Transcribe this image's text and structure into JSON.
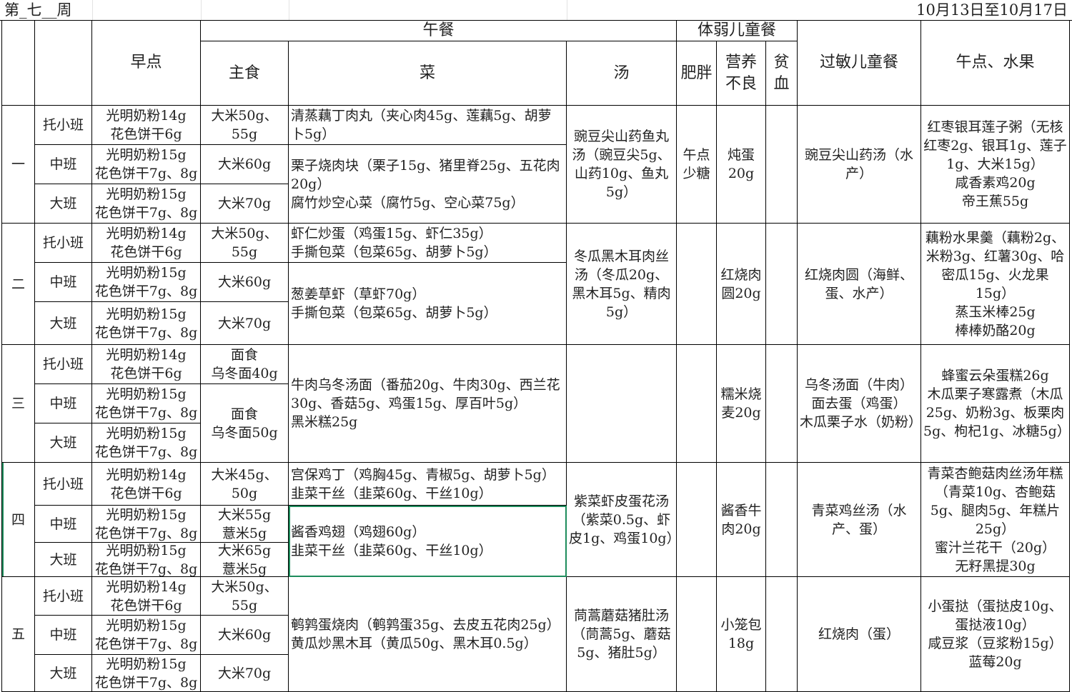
{
  "title": {
    "week": "第_七__周",
    "date_range": "10月13日至10月17日"
  },
  "header": {
    "breakfast": "早点",
    "lunch": "午餐",
    "staple": "主食",
    "dish": "菜",
    "soup": "汤",
    "weak": "体弱儿童餐",
    "obese": "肥胖",
    "malnutrition": "营养\n不良",
    "anemia": "贫\n血",
    "allergy": "过敏儿童餐",
    "snack": "午点、水果"
  },
  "classes": [
    "托小班",
    "中班",
    "大班"
  ],
  "days": [
    {
      "label": "一",
      "breakfast": [
        "光明奶粉14g\n花色饼干6g",
        "光明奶粉15g\n花色饼干7g、8g",
        "光明奶粉15g\n花色饼干7g、8g"
      ],
      "staple": [
        {
          "text": "大米50g、\n55g",
          "rows": 1
        },
        {
          "text": "大米60g",
          "rows": 1
        },
        {
          "text": "大米70g",
          "rows": 1
        }
      ],
      "dishes": [
        {
          "text": "清蒸藕丁肉丸（夹心肉45g、莲藕5g、胡萝卜5g）",
          "rows": 1
        },
        {
          "text": "栗子烧肉块（栗子15g、猪里脊25g、五花肉20g）\n腐竹炒空心菜（腐竹5g、空心菜75g）",
          "rows": 2
        }
      ],
      "soup": "豌豆尖山药鱼丸汤（豌豆尖5g、山药10g、鱼丸5g）",
      "obese": "午点\n少糖",
      "malnutrition": "炖蛋\n20g",
      "anemia": "",
      "allergy": "豌豆尖山药汤（水产）",
      "snack": "红枣银耳莲子粥（无核红枣2g、银耳1g、莲子1g、大米15g）\n咸香素鸡20g\n帝王蕉55g"
    },
    {
      "label": "二",
      "breakfast": [
        "光明奶粉14g\n花色饼干6g",
        "光明奶粉15g\n花色饼干7g、8g",
        "光明奶粉15g\n花色饼干7g、8g"
      ],
      "staple": [
        {
          "text": "大米50g、\n55g",
          "rows": 1
        },
        {
          "text": "大米60g",
          "rows": 1
        },
        {
          "text": "大米70g",
          "rows": 1
        }
      ],
      "dishes": [
        {
          "text": "虾仁炒蛋（鸡蛋15g、虾仁35g）\n手撕包菜（包菜65g、胡萝卜5g）",
          "rows": 1
        },
        {
          "text": "葱姜草虾（草虾70g）\n手撕包菜（包菜65g、胡萝卜5g）",
          "rows": 2
        }
      ],
      "soup": "冬瓜黑木耳肉丝汤（冬瓜20g、黑木耳5g、精肉5g）",
      "obese": "",
      "malnutrition": "红烧肉\n圆20g",
      "anemia": "",
      "allergy": "红烧肉圆（海鲜、蛋、水产）",
      "snack": "藕粉水果羹（藕粉2g、米粉3g、红薯30g、哈密瓜15g、火龙果15g）\n蒸玉米棒25g\n棒棒奶酪20g"
    },
    {
      "label": "三",
      "breakfast": [
        "光明奶粉14g\n花色饼干6g",
        "光明奶粉15g\n花色饼干7g、8g",
        "光明奶粉15g\n花色饼干7g、8g"
      ],
      "staple": [
        {
          "text": "面食\n乌冬面40g",
          "rows": 1
        },
        {
          "text": "面食\n乌冬面50g",
          "rows": 2
        }
      ],
      "dishes": [
        {
          "text": "牛肉乌冬汤面（番茄20g、牛肉30g、西兰花30g、香菇5g、鸡蛋15g、厚百叶5g）\n黑米糕25g",
          "rows": 3
        }
      ],
      "soup": "",
      "obese": "",
      "malnutrition": "糯米烧\n麦20g",
      "anemia": "",
      "allergy": "乌冬汤面（牛肉）\n面去蛋（鸡蛋）\n木瓜栗子水（奶粉）",
      "snack": "蜂蜜云朵蛋糕26g\n木瓜栗子寒露煮（木瓜25g、奶粉3g、板栗肉5g、枸杞1g、冰糖5g）"
    },
    {
      "label": "四",
      "breakfast": [
        "光明奶粉14g\n花色饼干6g",
        "光明奶粉15g\n花色饼干7g、8g",
        "光明奶粉15g\n花色饼干7g、8g"
      ],
      "staple": [
        {
          "text": "大米45g、\n50g",
          "rows": 1
        },
        {
          "text": "大米55g\n薏米5g",
          "rows": 1
        },
        {
          "text": "大米65g\n薏米5g",
          "rows": 1
        }
      ],
      "dishes": [
        {
          "text": "宫保鸡丁（鸡胸45g、青椒5g、胡萝卜5g）\n韭菜干丝（韭菜60g、干丝10g）",
          "rows": 1
        },
        {
          "text": "酱香鸡翅（鸡翅60g）\n韭菜干丝（韭菜60g、干丝10g）",
          "rows": 2,
          "selected": true
        }
      ],
      "soup": "紫菜虾皮蛋花汤（紫菜0.5g、虾皮1g、鸡蛋10g）",
      "obese": "",
      "malnutrition": "酱香牛\n肉20g",
      "anemia": "",
      "allergy": "青菜鸡丝汤（水产、蛋）",
      "snack": "青菜杏鲍菇肉丝汤年糕（青菜10g、杏鲍菇5g、腿肉5g、年糕片25g）\n蜜汁兰花干（20g）\n无籽黑提30g"
    },
    {
      "label": "五",
      "breakfast": [
        "光明奶粉14g\n花色饼干6g",
        "光明奶粉15g\n花色饼干7g、8g",
        "光明奶粉15g\n花色饼干7g、8g"
      ],
      "staple": [
        {
          "text": "大米50g、\n55g",
          "rows": 1
        },
        {
          "text": "大米60g",
          "rows": 1
        },
        {
          "text": "大米70g",
          "rows": 1
        }
      ],
      "dishes": [
        {
          "text": "鹌鹑蛋烧肉（鹌鹑蛋35g、去皮五花肉25g）\n黄瓜炒黑木耳（黄瓜50g、黑木耳0.5g）",
          "rows": 3
        }
      ],
      "soup": "茼蒿蘑菇猪肚汤（茼蒿5g、蘑菇5g、猪肚5g）",
      "obese": "",
      "malnutrition": "小笼包\n18g",
      "anemia": "",
      "allergy": "红烧肉（蛋）",
      "snack": "小蛋挞（蛋挞皮10g、蛋挞液10g）\n咸豆浆（豆浆粉15g）\n蓝莓20g"
    }
  ]
}
